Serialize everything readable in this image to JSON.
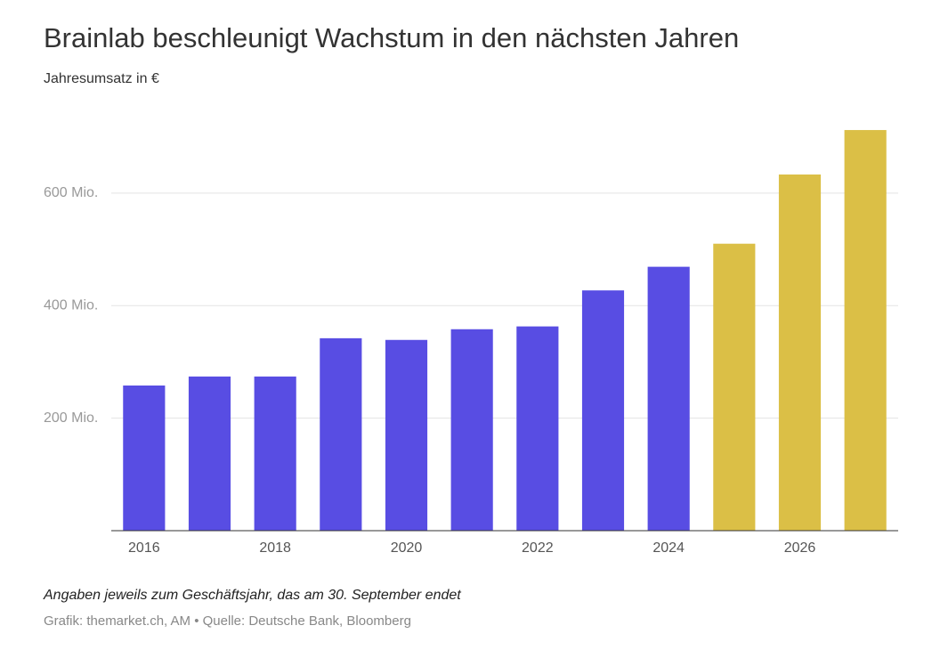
{
  "chart_data": {
    "type": "bar",
    "title": "Brainlab beschleunigt Wachstum in den nächsten Jahren",
    "subtitle": "Jahresumsatz in €",
    "categories": [
      "2016",
      null,
      "2018",
      null,
      "2020",
      null,
      "2022",
      null,
      "2024",
      null,
      "2026",
      null
    ],
    "values": [
      258,
      274,
      274,
      342,
      339,
      358,
      363,
      427,
      469,
      510,
      633,
      712
    ],
    "colors": [
      "#584de3",
      "#584de3",
      "#584de3",
      "#584de3",
      "#584de3",
      "#584de3",
      "#584de3",
      "#584de3",
      "#584de3",
      "#dbbf46",
      "#dbbf46",
      "#dbbf46"
    ],
    "ylim": [
      0,
      720
    ],
    "yticks": [
      {
        "value": 200,
        "label": "200 Mio."
      },
      {
        "value": 400,
        "label": "400 Mio."
      },
      {
        "value": 600,
        "label": "600 Mio."
      }
    ],
    "grid": true,
    "note": "Angaben jeweils zum Geschäftsjahr, das am 30. September endet",
    "source": "Grafik: themarket.ch, AM • Quelle: Deutsche Bank, Bloomberg"
  }
}
